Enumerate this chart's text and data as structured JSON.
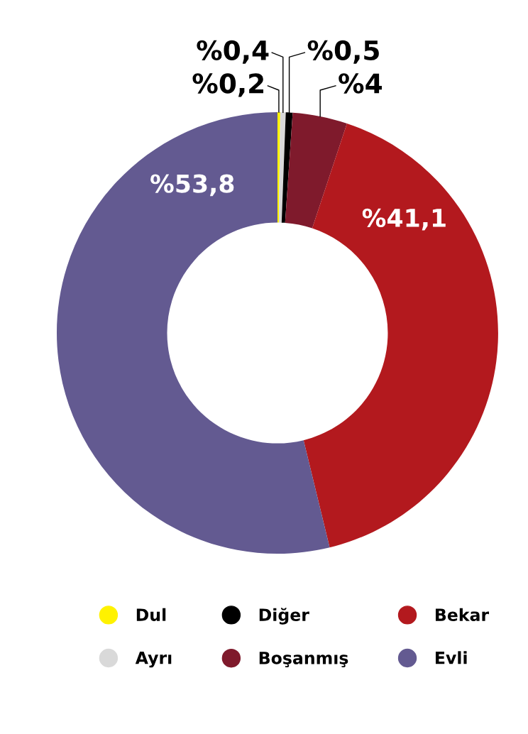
{
  "chart_data": {
    "type": "donut",
    "categories": [
      "Dul",
      "Ayrı",
      "Diğer",
      "Boşanmış",
      "Bekar",
      "Evli"
    ],
    "values": [
      0.2,
      0.4,
      0.5,
      4,
      41.1,
      53.8
    ],
    "colors": [
      "#fff200",
      "#d9d9d9",
      "#000000",
      "#7f1a2c",
      "#b3191e",
      "#635a91"
    ],
    "value_labels": [
      "%0,2",
      "%0,4",
      "%0,5",
      "%4",
      "%41,1",
      "%53,8"
    ],
    "legend": "bottom"
  }
}
